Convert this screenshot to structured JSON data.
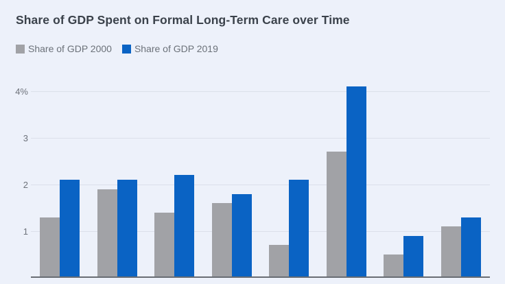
{
  "title": "Share of GDP Spent on Formal Long-Term Care over Time",
  "chart_data": {
    "type": "bar",
    "title": "Share of GDP Spent on Formal Long-Term Care over Time",
    "categories": [
      "",
      "",
      "",
      "",
      "",
      "",
      "",
      ""
    ],
    "x_axis_labels_visible": false,
    "series": [
      {
        "name": "Share of GDP 2000",
        "color": "#a1a2a6",
        "values": [
          1.3,
          1.9,
          1.4,
          1.6,
          0.7,
          2.7,
          0.5,
          1.1
        ]
      },
      {
        "name": "Share of GDP 2019",
        "color": "#0a63c4",
        "values": [
          2.1,
          2.1,
          2.2,
          1.8,
          2.1,
          4.1,
          0.9,
          1.3
        ]
      }
    ],
    "xlabel": "",
    "ylabel": "",
    "ylim": [
      0,
      4.3
    ],
    "yticks": [
      {
        "value": 1,
        "label": "1"
      },
      {
        "value": 2,
        "label": "2"
      },
      {
        "value": 3,
        "label": "3"
      },
      {
        "value": 4,
        "label": "4%"
      }
    ],
    "grid": true,
    "legend_position": "top-left"
  },
  "colors": {
    "background": "#edf1fa",
    "title_text": "#3b424b",
    "legend_text": "#6b7179",
    "tick_text": "#6d727a",
    "gridline": "#dbe0ea",
    "axis_line": "#686c73",
    "series_2000": "#a1a2a6",
    "series_2019": "#0a63c4"
  }
}
